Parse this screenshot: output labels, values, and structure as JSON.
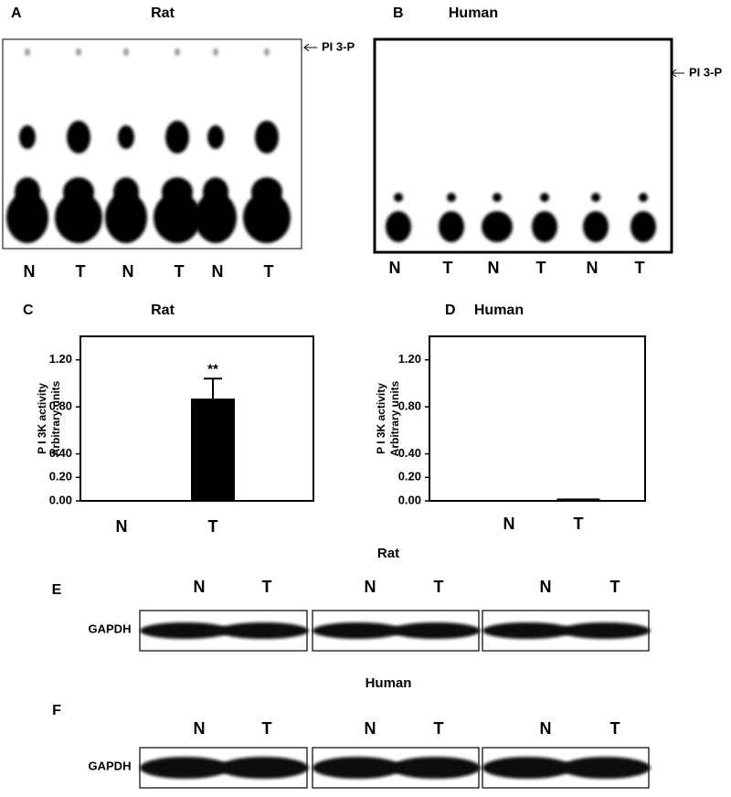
{
  "panels": [
    {
      "label": "A",
      "title": "Rat",
      "marker": "PI 3-P",
      "lanes": [
        "N",
        "T",
        "N",
        "T",
        "N",
        "T"
      ]
    },
    {
      "label": "B",
      "title": "Human",
      "marker": "PI 3-P",
      "lanes": [
        "N",
        "T",
        "N",
        "T",
        "N",
        "T"
      ]
    }
  ],
  "chart_data": [
    {
      "type": "bar",
      "panel": "C",
      "title": "Rat",
      "ylabel_lines": [
        "P I 3K activity",
        "Arbitrary units"
      ],
      "categories": [
        "N",
        "T"
      ],
      "values": [
        0,
        0.87
      ],
      "errors": [
        0,
        0.17
      ],
      "value_annotations": [
        null,
        "**"
      ],
      "color": "#000000",
      "ylim": [
        0,
        1.4
      ],
      "yticks": [
        {
          "value": 0,
          "label": "0.00"
        },
        {
          "value": 0.2,
          "label": "0.20"
        },
        {
          "value": 0.4,
          "label": "0.40"
        },
        {
          "value": 0.8,
          "label": "0.80"
        },
        {
          "value": 1.2,
          "label": "1.20"
        }
      ]
    },
    {
      "type": "bar",
      "panel": "D",
      "title": "Human",
      "ylabel_lines": [
        "P I 3K activity",
        "Arbitrary units"
      ],
      "categories": [
        "N",
        "T"
      ],
      "values": [
        0,
        0.02
      ],
      "color": "#000000",
      "ylim": [
        0,
        1.4
      ],
      "yticks": [
        {
          "value": 0,
          "label": "0.00"
        },
        {
          "value": 0.2,
          "label": "0.20"
        },
        {
          "value": 0.4,
          "label": "0.40"
        },
        {
          "value": 0.8,
          "label": "0.80"
        },
        {
          "value": 1.2,
          "label": "1.20"
        }
      ]
    }
  ],
  "blots": [
    {
      "label": "E",
      "title": "Rat",
      "protein": "GAPDH",
      "groups": [
        [
          "N",
          "T"
        ],
        [
          "N",
          "T"
        ],
        [
          "N",
          "T"
        ]
      ]
    },
    {
      "label": "F",
      "title": "Human",
      "protein": "GAPDH",
      "groups": [
        [
          "N",
          "T"
        ],
        [
          "N",
          "T"
        ],
        [
          "N",
          "T"
        ]
      ]
    }
  ]
}
